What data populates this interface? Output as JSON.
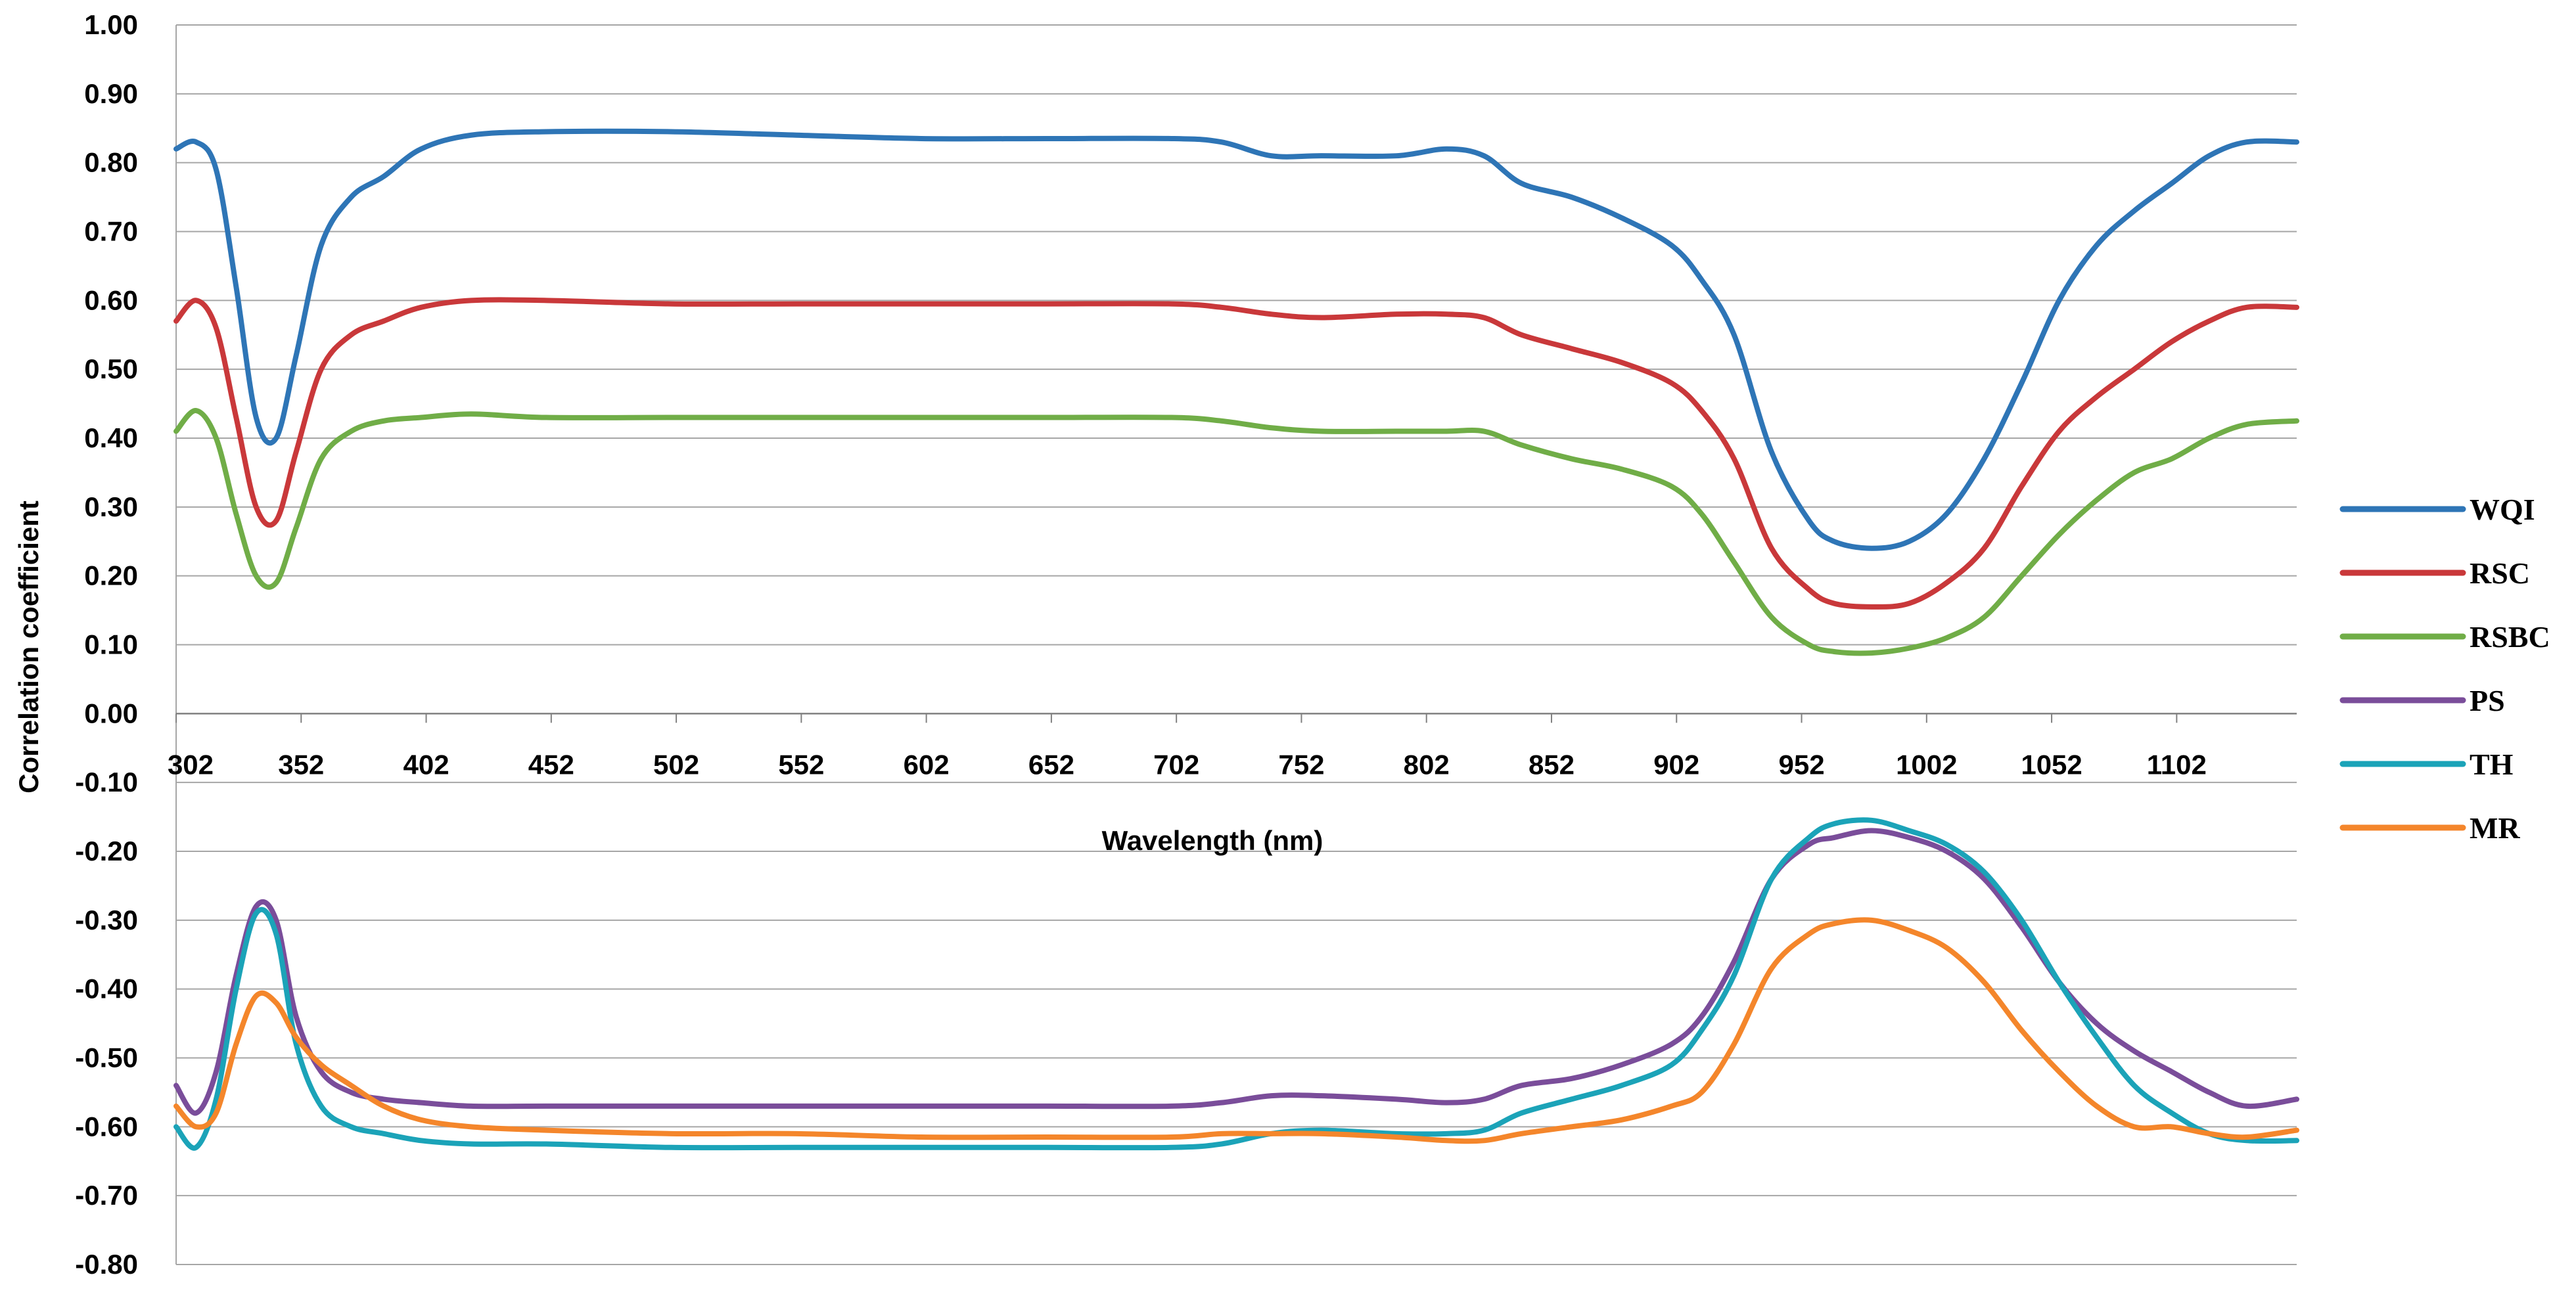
{
  "chart_data": {
    "type": "line",
    "xlabel": "Wavelength (nm)",
    "ylabel": "Correlation coefficient",
    "ylim": [
      -0.8,
      1.0
    ],
    "xlim": [
      302,
      1150
    ],
    "x_ticks": [
      "302",
      "352",
      "402",
      "452",
      "502",
      "552",
      "602",
      "652",
      "702",
      "752",
      "802",
      "852",
      "902",
      "952",
      "1002",
      "1052",
      "1102"
    ],
    "y_ticks": [
      "1.00",
      "0.90",
      "0.80",
      "0.70",
      "0.60",
      "0.50",
      "0.40",
      "0.30",
      "0.20",
      "0.10",
      "0.00",
      "-0.10",
      "-0.20",
      "-0.30",
      "-0.40",
      "-0.50",
      "-0.60",
      "-0.70",
      "-0.80"
    ],
    "grid": "horizontal",
    "legend_position": "right",
    "x": [
      302,
      310,
      318,
      326,
      334,
      342,
      350,
      360,
      372,
      385,
      400,
      420,
      450,
      500,
      550,
      600,
      650,
      700,
      720,
      740,
      760,
      790,
      810,
      825,
      840,
      860,
      880,
      900,
      912,
      925,
      940,
      955,
      965,
      980,
      995,
      1010,
      1025,
      1040,
      1055,
      1070,
      1085,
      1100,
      1115,
      1130,
      1150
    ],
    "series": [
      {
        "name": "WQI",
        "color": "#2e75b6",
        "values": [
          0.82,
          0.83,
          0.79,
          0.62,
          0.43,
          0.4,
          0.52,
          0.68,
          0.75,
          0.78,
          0.82,
          0.84,
          0.845,
          0.845,
          0.84,
          0.835,
          0.835,
          0.835,
          0.83,
          0.81,
          0.81,
          0.81,
          0.82,
          0.81,
          0.77,
          0.75,
          0.72,
          0.68,
          0.63,
          0.55,
          0.38,
          0.28,
          0.25,
          0.24,
          0.25,
          0.29,
          0.37,
          0.48,
          0.6,
          0.68,
          0.73,
          0.77,
          0.81,
          0.83,
          0.83
        ]
      },
      {
        "name": "RSC",
        "color": "#c9383a",
        "values": [
          0.57,
          0.6,
          0.56,
          0.43,
          0.3,
          0.28,
          0.38,
          0.5,
          0.55,
          0.57,
          0.59,
          0.6,
          0.6,
          0.595,
          0.595,
          0.595,
          0.595,
          0.595,
          0.59,
          0.58,
          0.575,
          0.58,
          0.58,
          0.575,
          0.55,
          0.53,
          0.51,
          0.48,
          0.44,
          0.37,
          0.24,
          0.18,
          0.16,
          0.155,
          0.16,
          0.19,
          0.24,
          0.33,
          0.41,
          0.46,
          0.5,
          0.54,
          0.57,
          0.59,
          0.59
        ]
      },
      {
        "name": "RSBC",
        "color": "#70ad47",
        "values": [
          0.41,
          0.44,
          0.4,
          0.29,
          0.2,
          0.19,
          0.27,
          0.37,
          0.41,
          0.425,
          0.43,
          0.435,
          0.43,
          0.43,
          0.43,
          0.43,
          0.43,
          0.43,
          0.425,
          0.415,
          0.41,
          0.41,
          0.41,
          0.41,
          0.39,
          0.37,
          0.355,
          0.33,
          0.29,
          0.22,
          0.14,
          0.1,
          0.09,
          0.088,
          0.095,
          0.11,
          0.14,
          0.2,
          0.26,
          0.31,
          0.35,
          0.37,
          0.4,
          0.42,
          0.425
        ]
      },
      {
        "name": "PS",
        "color": "#7a4d9a",
        "values": [
          -0.54,
          -0.58,
          -0.52,
          -0.38,
          -0.28,
          -0.3,
          -0.44,
          -0.52,
          -0.55,
          -0.56,
          -0.565,
          -0.57,
          -0.57,
          -0.57,
          -0.57,
          -0.57,
          -0.57,
          -0.57,
          -0.565,
          -0.555,
          -0.555,
          -0.56,
          -0.565,
          -0.56,
          -0.54,
          -0.53,
          -0.51,
          -0.48,
          -0.44,
          -0.36,
          -0.24,
          -0.19,
          -0.18,
          -0.17,
          -0.18,
          -0.2,
          -0.24,
          -0.31,
          -0.39,
          -0.45,
          -0.49,
          -0.52,
          -0.55,
          -0.57,
          -0.56
        ]
      },
      {
        "name": "TH",
        "color": "#1ba3b8",
        "values": [
          -0.6,
          -0.63,
          -0.56,
          -0.4,
          -0.29,
          -0.32,
          -0.48,
          -0.57,
          -0.6,
          -0.61,
          -0.62,
          -0.625,
          -0.625,
          -0.63,
          -0.63,
          -0.63,
          -0.63,
          -0.63,
          -0.625,
          -0.61,
          -0.605,
          -0.61,
          -0.61,
          -0.605,
          -0.58,
          -0.56,
          -0.54,
          -0.51,
          -0.46,
          -0.38,
          -0.24,
          -0.18,
          -0.16,
          -0.155,
          -0.17,
          -0.19,
          -0.23,
          -0.3,
          -0.39,
          -0.47,
          -0.54,
          -0.58,
          -0.61,
          -0.62,
          -0.62
        ]
      },
      {
        "name": "MR",
        "color": "#f4862b",
        "values": [
          -0.57,
          -0.6,
          -0.58,
          -0.48,
          -0.41,
          -0.42,
          -0.47,
          -0.51,
          -0.54,
          -0.57,
          -0.59,
          -0.6,
          -0.605,
          -0.61,
          -0.61,
          -0.615,
          -0.615,
          -0.615,
          -0.61,
          -0.61,
          -0.61,
          -0.615,
          -0.62,
          -0.62,
          -0.61,
          -0.6,
          -0.59,
          -0.57,
          -0.55,
          -0.48,
          -0.37,
          -0.32,
          -0.305,
          -0.3,
          -0.315,
          -0.34,
          -0.39,
          -0.46,
          -0.52,
          -0.57,
          -0.6,
          -0.6,
          -0.61,
          -0.615,
          -0.605
        ]
      }
    ]
  }
}
